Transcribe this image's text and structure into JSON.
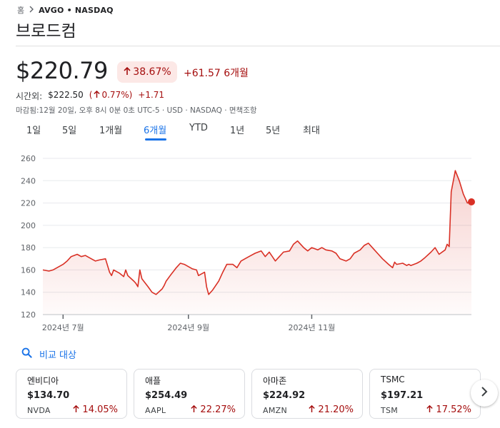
{
  "breadcrumb": {
    "home": "홈",
    "ticker": "AVGO • NASDAQ"
  },
  "title": "브로드컴",
  "quote": {
    "price": "$220.79",
    "pct_change": "38.67%",
    "abs_change": "+61.57",
    "period": "6개월",
    "after_hours_label": "시간외:",
    "after_hours_price": "$222.50",
    "after_hours_pct_open": "(",
    "after_hours_pct": "0.77%",
    "after_hours_pct_close": ")",
    "after_hours_change": "+1.71",
    "footnote": "마감됨:12월 20일, 오후 8시 0분 0초 UTC-5 · USD · NASDAQ · 면책조항"
  },
  "tabs": [
    "1일",
    "5일",
    "1개월",
    "6개월",
    "YTD",
    "1년",
    "5년",
    "최대"
  ],
  "active_tab": "6개월",
  "colors": {
    "accent": "#1a73e8",
    "negative_text": "#a50e0e",
    "line": "#d93025",
    "badge_bg": "#fce8e6"
  },
  "chart_data": {
    "type": "area",
    "y_ticks": [
      "260",
      "240",
      "220",
      "200",
      "180",
      "160",
      "140",
      "120"
    ],
    "ylim": [
      120,
      260
    ],
    "x_ticks": [
      "2024년 7월",
      "2024년 9월",
      "2024년 11월"
    ],
    "grid": true,
    "points": [
      [
        "2024-06-21",
        160
      ],
      [
        "2024-06-24",
        159
      ],
      [
        "2024-06-26",
        160
      ],
      [
        "2024-06-28",
        162
      ],
      [
        "2024-07-01",
        165
      ],
      [
        "2024-07-03",
        168
      ],
      [
        "2024-07-05",
        172
      ],
      [
        "2024-07-08",
        174
      ],
      [
        "2024-07-10",
        172
      ],
      [
        "2024-07-12",
        173
      ],
      [
        "2024-07-15",
        170
      ],
      [
        "2024-07-17",
        168
      ],
      [
        "2024-07-19",
        169
      ],
      [
        "2024-07-22",
        170
      ],
      [
        "2024-07-24",
        158
      ],
      [
        "2024-07-25",
        155
      ],
      [
        "2024-07-26",
        160
      ],
      [
        "2024-07-29",
        157
      ],
      [
        "2024-07-31",
        154
      ],
      [
        "2024-08-01",
        160
      ],
      [
        "2024-08-02",
        155
      ],
      [
        "2024-08-05",
        150
      ],
      [
        "2024-08-06",
        148
      ],
      [
        "2024-08-07",
        145
      ],
      [
        "2024-08-08",
        160
      ],
      [
        "2024-08-09",
        152
      ],
      [
        "2024-08-12",
        145
      ],
      [
        "2024-08-14",
        140
      ],
      [
        "2024-08-16",
        138
      ],
      [
        "2024-08-19",
        143
      ],
      [
        "2024-08-20",
        146
      ],
      [
        "2024-08-21",
        150
      ],
      [
        "2024-08-23",
        155
      ],
      [
        "2024-08-26",
        162
      ],
      [
        "2024-08-28",
        166
      ],
      [
        "2024-08-30",
        165
      ],
      [
        "2024-09-03",
        161
      ],
      [
        "2024-09-05",
        160
      ],
      [
        "2024-09-06",
        155
      ],
      [
        "2024-09-09",
        158
      ],
      [
        "2024-09-10",
        145
      ],
      [
        "2024-09-11",
        138
      ],
      [
        "2024-09-13",
        142
      ],
      [
        "2024-09-16",
        150
      ],
      [
        "2024-09-18",
        158
      ],
      [
        "2024-09-20",
        165
      ],
      [
        "2024-09-23",
        165
      ],
      [
        "2024-09-25",
        162
      ],
      [
        "2024-09-27",
        168
      ],
      [
        "2024-09-30",
        171
      ],
      [
        "2024-10-02",
        173
      ],
      [
        "2024-10-04",
        175
      ],
      [
        "2024-10-07",
        177
      ],
      [
        "2024-10-09",
        172
      ],
      [
        "2024-10-11",
        176
      ],
      [
        "2024-10-14",
        168
      ],
      [
        "2024-10-16",
        172
      ],
      [
        "2024-10-18",
        176
      ],
      [
        "2024-10-21",
        177
      ],
      [
        "2024-10-23",
        183
      ],
      [
        "2024-10-25",
        186
      ],
      [
        "2024-10-28",
        180
      ],
      [
        "2024-10-30",
        177
      ],
      [
        "2024-11-01",
        180
      ],
      [
        "2024-11-04",
        178
      ],
      [
        "2024-11-06",
        180
      ],
      [
        "2024-11-08",
        178
      ],
      [
        "2024-11-11",
        177
      ],
      [
        "2024-11-13",
        175
      ],
      [
        "2024-11-15",
        170
      ],
      [
        "2024-11-18",
        168
      ],
      [
        "2024-11-20",
        170
      ],
      [
        "2024-11-22",
        175
      ],
      [
        "2024-11-25",
        178
      ],
      [
        "2024-11-27",
        182
      ],
      [
        "2024-11-29",
        184
      ],
      [
        "2024-12-02",
        178
      ],
      [
        "2024-12-04",
        174
      ],
      [
        "2024-12-06",
        170
      ],
      [
        "2024-12-09",
        165
      ],
      [
        "2024-12-11",
        162
      ],
      [
        "2024-12-12",
        167
      ],
      [
        "2024-12-13",
        165
      ],
      [
        "2024-12-16",
        166
      ],
      [
        "2024-12-17",
        165
      ],
      [
        "2024-12-18",
        164
      ],
      [
        "2024-12-19",
        165
      ],
      [
        "2024-12-20",
        164
      ],
      [
        "2024-12-23",
        166
      ],
      [
        "2024-12-25",
        168
      ],
      [
        "2024-12-27",
        171
      ],
      [
        "2024-12-30",
        176
      ],
      [
        "2025-01-01",
        180
      ],
      [
        "2025-01-03",
        174
      ],
      [
        "2025-01-06",
        178
      ],
      [
        "2025-01-07",
        183
      ],
      [
        "2025-01-08",
        181
      ],
      [
        "2025-01-09",
        230
      ],
      [
        "2025-01-11",
        249
      ],
      [
        "2025-01-13",
        240
      ],
      [
        "2025-01-15",
        228
      ],
      [
        "2025-01-17",
        220
      ],
      [
        "2025-01-19",
        221
      ]
    ]
  },
  "compare": {
    "label": "비교 대상"
  },
  "cards": [
    {
      "name": "엔비디아",
      "price": "$134.70",
      "symbol": "NVDA",
      "pct": "14.05%"
    },
    {
      "name": "애플",
      "price": "$254.49",
      "symbol": "AAPL",
      "pct": "22.27%"
    },
    {
      "name": "아마존",
      "price": "$224.92",
      "symbol": "AMZN",
      "pct": "21.20%"
    },
    {
      "name": "TSMC",
      "price": "$197.21",
      "symbol": "TSM",
      "pct": "17.52%"
    }
  ]
}
